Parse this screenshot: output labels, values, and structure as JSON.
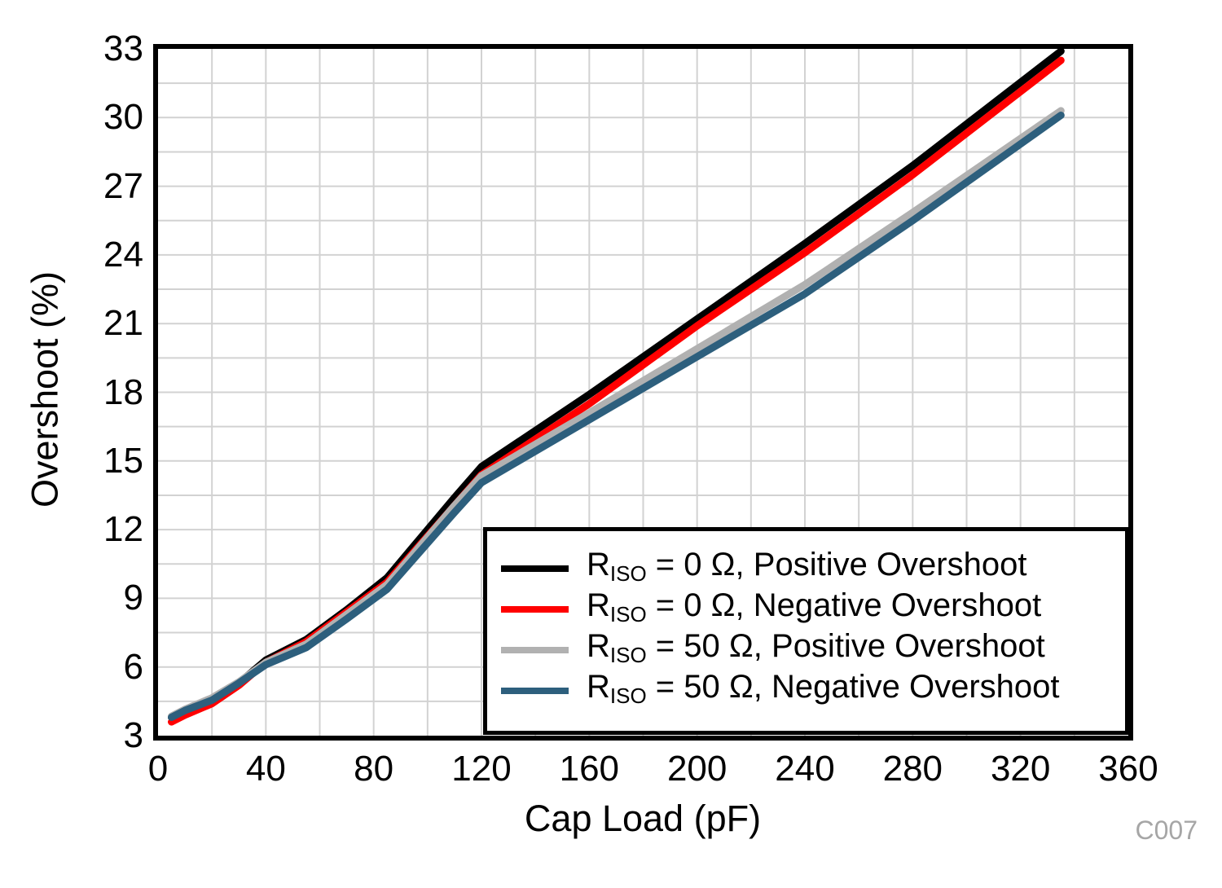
{
  "watermark": "C007",
  "chart_data": {
    "type": "line",
    "title": "",
    "xlabel": "Cap Load (pF)",
    "ylabel": "Overshoot (%)",
    "xlim": [
      0,
      360
    ],
    "ylim": [
      3,
      33
    ],
    "x_ticks": [
      0,
      40,
      80,
      120,
      160,
      200,
      240,
      280,
      320,
      360
    ],
    "y_ticks": [
      3,
      6,
      9,
      12,
      15,
      18,
      21,
      24,
      27,
      30,
      33
    ],
    "grid": {
      "x_step_pf": 20,
      "y_step_pct": 1.5,
      "color": "#d2d2d2",
      "width": 2
    },
    "frame_color": "#000000",
    "legend_position": "bottom-right",
    "x": [
      5,
      10,
      20,
      30,
      40,
      55,
      70,
      85,
      110,
      120,
      160,
      200,
      240,
      280,
      335
    ],
    "series": [
      {
        "label": "RISO = 0 Ω, Positive Overshoot",
        "label_parts": {
          "main": "R",
          "sub": "ISO",
          "rest": " = 0 Ω, Positive Overshoot"
        },
        "color": "#000000",
        "values": [
          3.8,
          4.1,
          4.6,
          5.3,
          6.3,
          7.2,
          8.5,
          9.9,
          13.4,
          14.75,
          17.9,
          21.2,
          24.5,
          27.9,
          32.9
        ]
      },
      {
        "label": "RISO = 0 Ω, Negative Overshoot",
        "label_parts": {
          "main": "R",
          "sub": "ISO",
          "rest": " = 0 Ω, Negative Overshoot"
        },
        "color": "#ff0000",
        "values": [
          3.6,
          3.9,
          4.4,
          5.2,
          6.2,
          7.1,
          8.4,
          9.7,
          13.05,
          14.4,
          17.5,
          20.9,
          24.1,
          27.5,
          32.5
        ]
      },
      {
        "label": "RISO = 50 Ω, Positive Overshoot",
        "label_parts": {
          "main": "R",
          "sub": "ISO",
          "rest": " = 50 Ω, Positive Overshoot"
        },
        "color": "#b1b1b1",
        "values": [
          3.85,
          4.15,
          4.65,
          5.35,
          6.2,
          7.0,
          8.3,
          9.6,
          13.05,
          14.35,
          17.1,
          19.9,
          22.7,
          25.85,
          30.3
        ]
      },
      {
        "label": "RISO = 50 Ω, Negative Overshoot",
        "label_parts": {
          "main": "R",
          "sub": "ISO",
          "rest": " = 50 Ω, Negative Overshoot"
        },
        "color": "#2d5f7d",
        "values": [
          3.8,
          4.1,
          4.55,
          5.3,
          6.1,
          6.85,
          8.1,
          9.4,
          12.75,
          14.05,
          16.8,
          19.55,
          22.3,
          25.5,
          30.1
        ]
      }
    ]
  }
}
